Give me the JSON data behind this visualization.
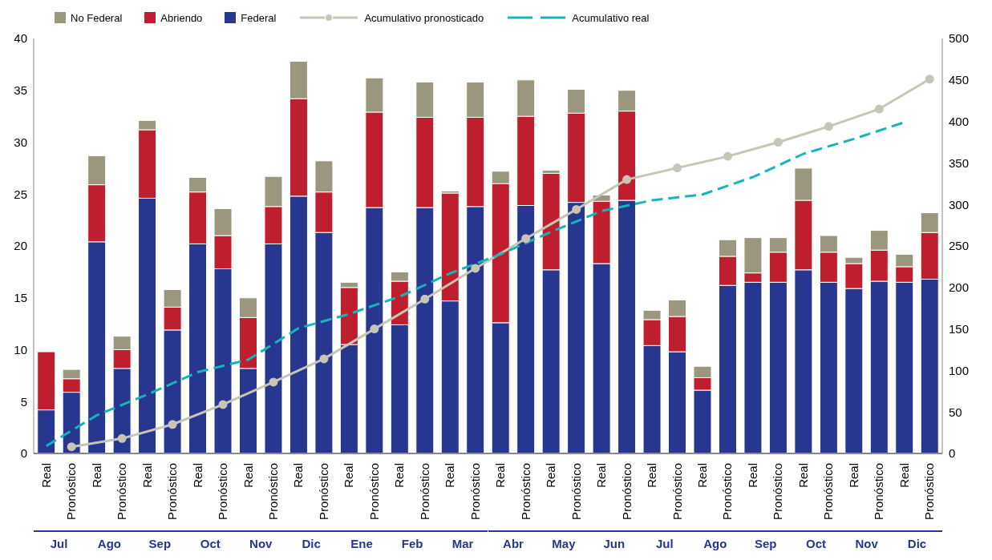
{
  "chart_data": {
    "type": "bar",
    "stacked": true,
    "legend": "top",
    "grid": false,
    "categories": [
      "Real",
      "Pronóstico",
      "Real",
      "Pronóstico",
      "Real",
      "Pronóstico",
      "Real",
      "Pronóstico",
      "Real",
      "Pronóstico",
      "Real",
      "Pronóstico",
      "Real",
      "Pronóstico",
      "Real",
      "Pronóstico",
      "Real",
      "Pronóstico",
      "Real",
      "Pronóstico",
      "Real",
      "Pronóstico",
      "Real",
      "Pronóstico",
      "Real",
      "Pronóstico",
      "Real",
      "Pronóstico",
      "Real",
      "Pronóstico",
      "Real",
      "Pronóstico",
      "Real",
      "Pronóstico",
      "Real",
      "Pronóstico"
    ],
    "annotations": [
      "Jul",
      "Ago",
      "Sep",
      "Oct",
      "Nov",
      "Dic",
      "Ene",
      "Feb",
      "Mar",
      "Abr",
      "May",
      "Jun",
      "Jul",
      "Ago",
      "Sep",
      "Oct",
      "Nov",
      "Dic"
    ],
    "ylim": [
      0,
      40
    ],
    "yticks": [
      0,
      5,
      10,
      15,
      20,
      25,
      30,
      35,
      40
    ],
    "y2lim": [
      0,
      500
    ],
    "y2ticks": [
      0,
      50,
      100,
      150,
      200,
      250,
      300,
      350,
      400,
      450,
      500
    ],
    "series": [
      {
        "name": "Federal",
        "color": "#27368f",
        "values": [
          4.2,
          5.9,
          20.4,
          8.2,
          24.6,
          11.9,
          20.2,
          17.8,
          8.2,
          20.2,
          24.8,
          21.3,
          10.5,
          23.7,
          12.4,
          23.7,
          14.7,
          23.8,
          12.6,
          23.9,
          17.7,
          24.2,
          18.3,
          24.4,
          10.4,
          9.8,
          6.1,
          16.2,
          16.5,
          16.5,
          17.7,
          16.5,
          15.9,
          16.6,
          16.5,
          16.8
        ]
      },
      {
        "name": "Abriendo",
        "color": "#be1e2d",
        "values": [
          5.6,
          1.3,
          5.5,
          1.8,
          6.6,
          2.2,
          5.0,
          3.2,
          4.9,
          3.6,
          9.4,
          3.9,
          5.5,
          9.2,
          4.2,
          8.7,
          10.4,
          8.6,
          13.4,
          8.6,
          9.3,
          8.6,
          6.0,
          8.6,
          2.5,
          3.4,
          1.2,
          2.8,
          0.9,
          2.9,
          6.7,
          2.9,
          2.4,
          3.0,
          1.5,
          4.5
        ]
      },
      {
        "name": "No Federal",
        "color": "#9b977e",
        "values": [
          0,
          0.9,
          2.8,
          1.3,
          0.9,
          1.7,
          1.4,
          2.6,
          1.9,
          2.9,
          3.6,
          3.0,
          0.5,
          3.3,
          0.9,
          3.4,
          0.2,
          3.4,
          1.2,
          3.5,
          0.3,
          2.3,
          0.6,
          2.0,
          0.9,
          1.6,
          1.1,
          1.6,
          3.4,
          1.4,
          3.1,
          1.6,
          0.6,
          1.9,
          1.2,
          1.9
        ]
      },
      {
        "name": "Acumulativo pronosticado",
        "type": "line",
        "axis": "y2",
        "color": "#c8c5b5",
        "marker": "circle",
        "line_style": "solid",
        "values": [
          null,
          8,
          null,
          18,
          null,
          35,
          null,
          59,
          null,
          86,
          null,
          114,
          null,
          150,
          null,
          186,
          null,
          223,
          null,
          259,
          null,
          294,
          null,
          330,
          null,
          344,
          null,
          358,
          null,
          375,
          null,
          394,
          null,
          415,
          null,
          451
        ]
      },
      {
        "name": "Acumulativo real",
        "type": "line",
        "axis": "y2",
        "color": "#16b4bc",
        "marker": "none",
        "line_style": "dashed",
        "values": [
          9,
          null,
          46,
          null,
          71,
          null,
          98,
          null,
          113,
          null,
          151,
          null,
          168,
          null,
          189,
          null,
          217,
          null,
          240,
          null,
          267,
          null,
          292,
          null,
          305,
          null,
          312,
          null,
          333,
          null,
          361,
          null,
          379,
          null,
          399,
          null
        ]
      }
    ]
  }
}
